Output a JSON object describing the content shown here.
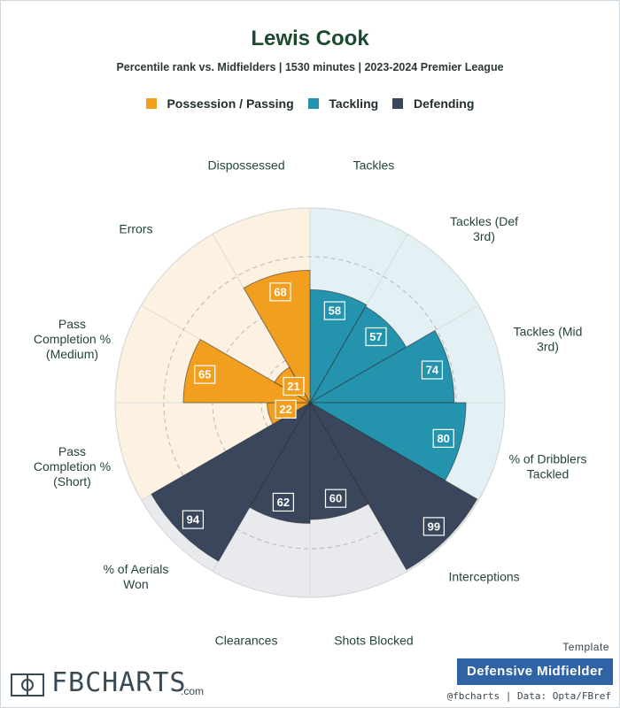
{
  "header": {
    "title": "Lewis Cook",
    "subtitle": "Percentile rank vs. Midfielders | 1530 minutes | 2023-2024 Premier League"
  },
  "legend": [
    {
      "label": "Possession / Passing",
      "color": "#f29f1f"
    },
    {
      "label": "Tackling",
      "color": "#2493ad"
    },
    {
      "label": "Defending",
      "color": "#3a465b"
    }
  ],
  "chart_data": {
    "type": "radar",
    "scale": [
      0,
      100
    ],
    "rings": [
      25,
      50,
      75,
      100
    ],
    "categories": [
      {
        "label": "Tackles",
        "value": 58,
        "group": "Tackling"
      },
      {
        "label": "Tackles (Def 3rd)",
        "value": 57,
        "group": "Tackling"
      },
      {
        "label": "Tackles (Mid 3rd)",
        "value": 74,
        "group": "Tackling"
      },
      {
        "label": "% of Dribblers Tackled",
        "value": 80,
        "group": "Tackling"
      },
      {
        "label": "Interceptions",
        "value": 99,
        "group": "Defending"
      },
      {
        "label": "Shots Blocked",
        "value": 60,
        "group": "Defending"
      },
      {
        "label": "Clearances",
        "value": 62,
        "group": "Defending"
      },
      {
        "label": "% of Aerials Won",
        "value": 94,
        "group": "Defending"
      },
      {
        "label": "Pass Completion % (Short)",
        "value": 22,
        "group": "Possession / Passing"
      },
      {
        "label": "Pass Completion % (Medium)",
        "value": 65,
        "group": "Possession / Passing"
      },
      {
        "label": "Errors",
        "value": 21,
        "group": "Possession / Passing"
      },
      {
        "label": "Dispossessed",
        "value": 68,
        "group": "Possession / Passing"
      }
    ],
    "groups": {
      "Possession / Passing": {
        "fill": "#f29f1f",
        "bg": "#fdf2e2"
      },
      "Tackling": {
        "fill": "#2493ad",
        "bg": "#e3f1f5"
      },
      "Defending": {
        "fill": "#3a465b",
        "bg": "#e8eaed"
      }
    }
  },
  "branding": {
    "logo_text": "FBCHARTS",
    "logo_suffix": ".com",
    "template_caption": "Template",
    "template_name": "Defensive Midfielder",
    "credit": "@fbcharts | Data: Opta/FBref"
  }
}
